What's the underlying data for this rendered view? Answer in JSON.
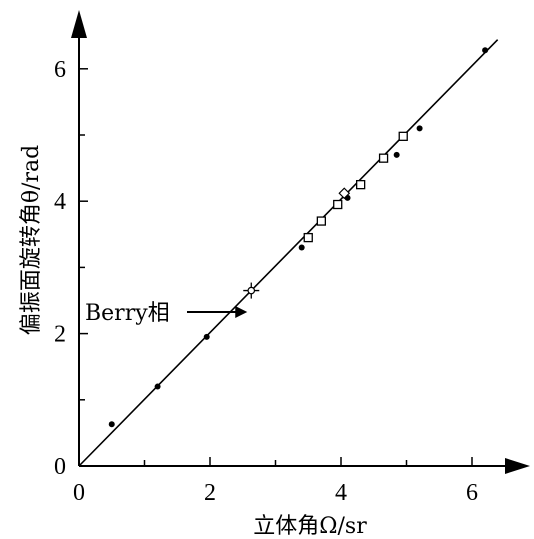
{
  "chart_data": {
    "type": "scatter",
    "xlabel": "立体角Ω/sr",
    "ylabel": "偏振面旋转角θ/rad",
    "xlim": [
      0,
      6.6
    ],
    "ylim": [
      0,
      6.8
    ],
    "x_ticks": [
      "0",
      "2",
      "4",
      "6"
    ],
    "y_ticks": [
      "0",
      "2",
      "4",
      "6"
    ],
    "series": [
      {
        "marker": "filled-dot",
        "points": [
          {
            "x": 0.5,
            "y": 0.63
          },
          {
            "x": 1.2,
            "y": 1.2
          },
          {
            "x": 1.95,
            "y": 1.95
          },
          {
            "x": 3.4,
            "y": 3.3
          },
          {
            "x": 4.1,
            "y": 4.05
          },
          {
            "x": 4.85,
            "y": 4.7
          },
          {
            "x": 5.2,
            "y": 5.1
          },
          {
            "x": 6.2,
            "y": 6.28
          }
        ]
      },
      {
        "marker": "open-square",
        "points": [
          {
            "x": 3.5,
            "y": 3.45
          },
          {
            "x": 3.7,
            "y": 3.7
          },
          {
            "x": 3.95,
            "y": 3.95
          },
          {
            "x": 4.3,
            "y": 4.25
          },
          {
            "x": 4.65,
            "y": 4.65
          },
          {
            "x": 4.95,
            "y": 4.98
          }
        ]
      },
      {
        "marker": "open-diamond",
        "points": [
          {
            "x": 4.05,
            "y": 4.12
          }
        ]
      },
      {
        "marker": "open-circle-errorbar",
        "points": [
          {
            "x": 2.63,
            "y": 2.65
          }
        ]
      }
    ],
    "fit_line": {
      "x": [
        0,
        6.3
      ],
      "y": [
        0,
        6.35
      ]
    },
    "annotation": {
      "text": "Berry相",
      "target": {
        "x": 2.63,
        "y": 2.65
      }
    },
    "grid": false,
    "legend": "none"
  }
}
